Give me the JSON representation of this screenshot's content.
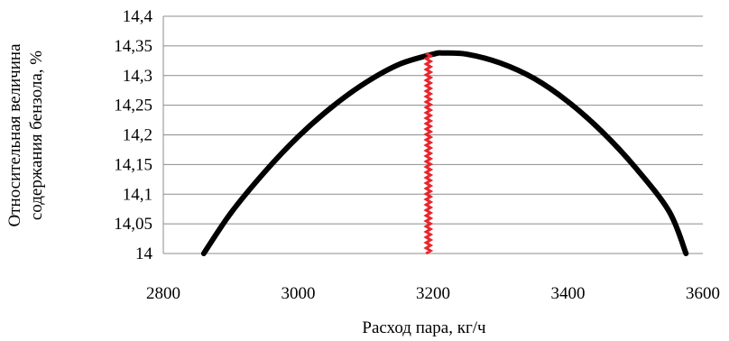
{
  "chart_data": {
    "type": "line",
    "title": "",
    "xlabel": "Расход пара, кг/ч",
    "ylabel_lines": [
      "Относительная величина",
      "содержания бензола, %"
    ],
    "xlim": [
      2800,
      3600
    ],
    "ylim": [
      14,
      14.4
    ],
    "x_ticks": [
      2800,
      3000,
      3200,
      3400,
      3600
    ],
    "x_tick_labels": [
      "2800",
      "3000",
      "3200",
      "3400",
      "3600"
    ],
    "y_ticks": [
      14,
      14.05,
      14.1,
      14.15,
      14.2,
      14.25,
      14.3,
      14.35,
      14.4
    ],
    "y_tick_labels": [
      "14",
      "14,05",
      "14,1",
      "14,15",
      "14,2",
      "14,25",
      "14,3",
      "14,35",
      "14,4"
    ],
    "grid": "horizontal",
    "series": [
      {
        "color": "#000000",
        "x": [
          2860,
          2900,
          2950,
          3000,
          3050,
          3100,
          3150,
          3200,
          3215,
          3250,
          3300,
          3350,
          3400,
          3450,
          3500,
          3550,
          3575
        ],
        "values": [
          14.0,
          14.068,
          14.137,
          14.197,
          14.247,
          14.288,
          14.319,
          14.336,
          14.338,
          14.336,
          14.321,
          14.295,
          14.256,
          14.206,
          14.145,
          14.071,
          14.0
        ]
      }
    ],
    "marker_line": {
      "x": 3193,
      "color": "#e8262c"
    }
  }
}
